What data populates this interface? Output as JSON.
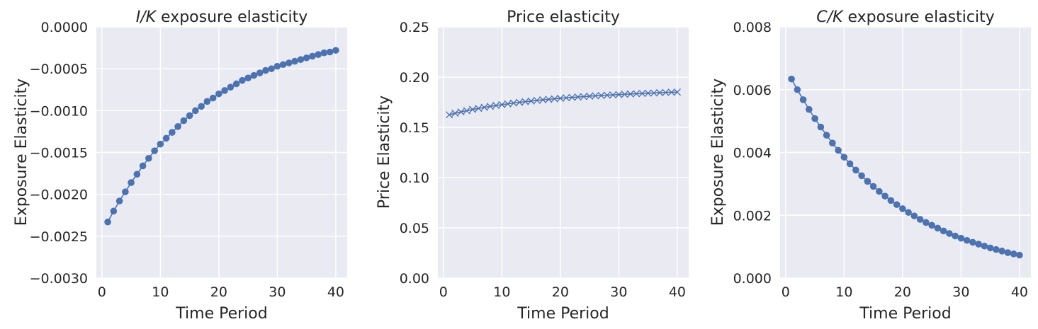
{
  "chart_data": [
    {
      "type": "line",
      "title_prefix": "I/K",
      "title_suffix": " exposure elasticity",
      "xlabel": "Time Period",
      "ylabel": "Exposure Elasticity",
      "xlim": [
        -0.95,
        41.95
      ],
      "ylim": [
        -0.003,
        0.0
      ],
      "xticks": [
        "0",
        "10",
        "20",
        "30",
        "40"
      ],
      "yticks": [
        "0.0000",
        "−0.0005",
        "−0.0010",
        "−0.0015",
        "−0.0020",
        "−0.0025",
        "−0.0030"
      ],
      "grid": true,
      "series": [
        {
          "marker": "circle",
          "color": "#4c72b0",
          "x": [
            1,
            2,
            3,
            4,
            5,
            6,
            7,
            8,
            9,
            10,
            11,
            12,
            13,
            14,
            15,
            16,
            17,
            18,
            19,
            20,
            21,
            22,
            23,
            24,
            25,
            26,
            27,
            28,
            29,
            30,
            31,
            32,
            33,
            34,
            35,
            36,
            37,
            38,
            39,
            40
          ],
          "values": [
            -0.00233,
            -0.0022,
            -0.00208,
            -0.00197,
            -0.00186,
            -0.00176,
            -0.00166,
            -0.00157,
            -0.00148,
            -0.0014,
            -0.00133,
            -0.00126,
            -0.00119,
            -0.00112,
            -0.00106,
            -0.001,
            -0.00095,
            -0.00089,
            -0.00085,
            -0.0008,
            -0.00076,
            -0.00072,
            -0.00068,
            -0.00064,
            -0.00061,
            -0.00058,
            -0.00055,
            -0.00052,
            -0.0005,
            -0.00047,
            -0.00045,
            -0.00043,
            -0.00041,
            -0.00039,
            -0.00037,
            -0.00035,
            -0.00033,
            -0.00031,
            -0.0003,
            -0.00028
          ]
        }
      ]
    },
    {
      "type": "line",
      "title": "Price elasticity",
      "xlabel": "Time Period",
      "ylabel": "Price Elasticity",
      "xlim": [
        -0.95,
        41.95
      ],
      "ylim": [
        0.0,
        0.25
      ],
      "xticks": [
        "0",
        "10",
        "20",
        "30",
        "40"
      ],
      "yticks": [
        "0.25",
        "0.20",
        "0.15",
        "0.10",
        "0.05",
        "0.00"
      ],
      "grid": true,
      "series": [
        {
          "marker": "x",
          "color": "#4c72b0",
          "x": [
            1,
            2,
            3,
            4,
            5,
            6,
            7,
            8,
            9,
            10,
            11,
            12,
            13,
            14,
            15,
            16,
            17,
            18,
            19,
            20,
            21,
            22,
            23,
            24,
            25,
            26,
            27,
            28,
            29,
            30,
            31,
            32,
            33,
            34,
            35,
            36,
            37,
            38,
            39,
            40
          ],
          "values": [
            0.1625,
            0.164,
            0.1654,
            0.1666,
            0.1678,
            0.1689,
            0.1699,
            0.1709,
            0.1718,
            0.1726,
            0.1734,
            0.1742,
            0.1749,
            0.1756,
            0.1762,
            0.1768,
            0.1774,
            0.1779,
            0.1784,
            0.1789,
            0.1794,
            0.1798,
            0.1802,
            0.1806,
            0.181,
            0.1814,
            0.1817,
            0.182,
            0.1823,
            0.1826,
            0.1829,
            0.1832,
            0.1835,
            0.1837,
            0.184,
            0.1842,
            0.1845,
            0.1847,
            0.1849,
            0.1851
          ]
        }
      ]
    },
    {
      "type": "line",
      "title_prefix": "C/K",
      "title_suffix": " exposure elasticity",
      "xlabel": "Time Period",
      "ylabel": "Exposure Elasticity",
      "xlim": [
        -0.95,
        41.95
      ],
      "ylim": [
        0.0,
        0.008
      ],
      "xticks": [
        "0",
        "10",
        "20",
        "30",
        "40"
      ],
      "yticks": [
        "0.008",
        "0.006",
        "0.004",
        "0.002",
        "0.000"
      ],
      "grid": true,
      "series": [
        {
          "marker": "circle",
          "color": "#4c72b0",
          "x": [
            1,
            2,
            3,
            4,
            5,
            6,
            7,
            8,
            9,
            10,
            11,
            12,
            13,
            14,
            15,
            16,
            17,
            18,
            19,
            20,
            21,
            22,
            23,
            24,
            25,
            26,
            27,
            28,
            29,
            30,
            31,
            32,
            33,
            34,
            35,
            36,
            37,
            38,
            39,
            40
          ],
          "values": [
            0.00634,
            0.006,
            0.00568,
            0.00537,
            0.00508,
            0.00481,
            0.00455,
            0.0043,
            0.00407,
            0.00385,
            0.00364,
            0.00344,
            0.00326,
            0.00308,
            0.00292,
            0.00276,
            0.00261,
            0.00247,
            0.00234,
            0.00221,
            0.00209,
            0.00198,
            0.00187,
            0.00177,
            0.00168,
            0.00159,
            0.0015,
            0.00142,
            0.00134,
            0.00127,
            0.0012,
            0.00114,
            0.00108,
            0.00102,
            0.00096,
            0.00091,
            0.00086,
            0.00081,
            0.00077,
            0.00073
          ]
        }
      ]
    }
  ]
}
